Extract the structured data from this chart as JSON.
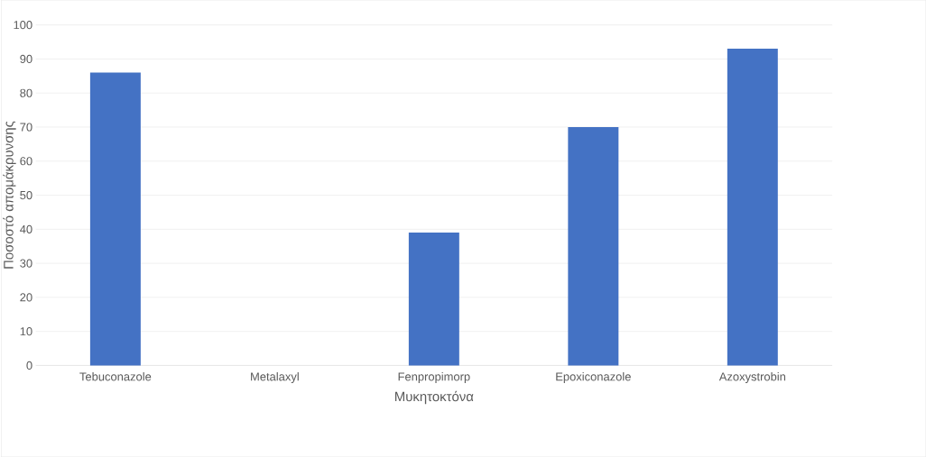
{
  "chart_data": {
    "type": "bar",
    "xlabel": "Μυκητοκτόνα",
    "ylabel": "Ποσοστό απομάκρυνσης",
    "categories": [
      "Tebuconazole",
      "Metalaxyl",
      "Fenpropimorp",
      "Epoxiconazole",
      "Azoxystrobin"
    ],
    "values": [
      86,
      0,
      39,
      70,
      93
    ],
    "color": "#4472c4",
    "ylim": [
      0,
      100
    ],
    "yticks": [
      0,
      10,
      20,
      30,
      40,
      50,
      60,
      70,
      80,
      90,
      100
    ],
    "grid": "y"
  }
}
